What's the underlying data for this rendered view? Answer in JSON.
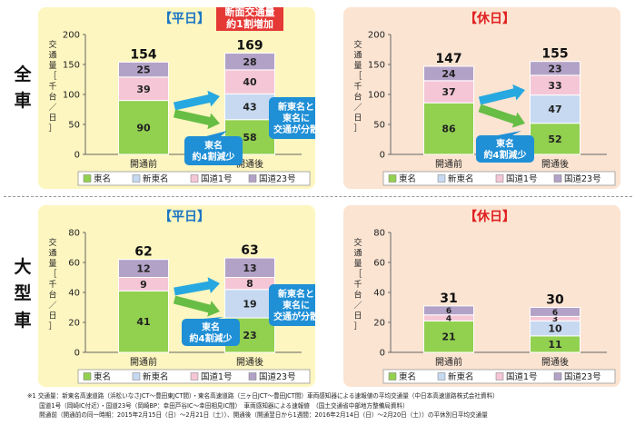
{
  "row_labels": {
    "all": [
      "全",
      "車"
    ],
    "large": [
      "大",
      "型",
      "車"
    ]
  },
  "ylabel_chars": [
    "交",
    "通",
    "量",
    "［",
    "千",
    "台",
    "／",
    "日",
    "］"
  ],
  "legend_labels": [
    "東名",
    "新東名",
    "国道1号",
    "国道23号"
  ],
  "colors": {
    "tomei": "#92d050",
    "shintomei": "#c6d9f1",
    "route1": "#f5c6d6",
    "route23": "#b3a2c7",
    "weekday_bg": "#fdf6c0",
    "holiday_bg": "#fbe4d2",
    "title_blue": "#1a75c4",
    "title_red": "#e02020",
    "arrow_blue": "#28a8e0",
    "arrow_green": "#68bd45",
    "callout_blue": "#1f8fd6"
  },
  "notes": [
    "※1 交通量：新東名高速道路（浜松いなさJCT～豊田東JCT間）・東名高速道路（三ヶ日JCT～豊田JCT間）車両感知器による速報値の平均交通量（中日本高速道路株式会社資料）",
    "　　国道1号（岡崎IC付近）・国道23号（岡崎BP：幸田芦谷IC～幸田相見IC間）　車両感知器による速報値　（国土交通省中部地方整備局資料）",
    "　　開通前（開通前の同一時期：2015年2月15日（日）～2月21日（土））、開通後（開通翌日から1週間：2016年2月14日（日）～2月20日（土））の平休別日平均交通量"
  ],
  "chart_data": [
    {
      "type": "bar",
      "stacked": true,
      "title": "【平日】",
      "vehicle": "全車",
      "ylabel": "交通量［千台／日］",
      "ylim": [
        0,
        200
      ],
      "yticks": [
        0,
        50,
        100,
        150,
        200
      ],
      "categories": [
        "開通前",
        "開通後"
      ],
      "series": [
        {
          "name": "東名",
          "values": [
            90,
            58
          ]
        },
        {
          "name": "新東名",
          "values": [
            0,
            43
          ]
        },
        {
          "name": "国道1号",
          "values": [
            39,
            40
          ]
        },
        {
          "name": "国道23号",
          "values": [
            25,
            28
          ]
        }
      ],
      "totals": [
        154,
        169
      ],
      "annotations": [
        "断面交通量\n約1割増加",
        "東名\n約4割減少",
        "新東名と\n東名に\n交通が分散"
      ]
    },
    {
      "type": "bar",
      "stacked": true,
      "title": "【休日】",
      "vehicle": "全車",
      "ylabel": "交通量［千台／日］",
      "ylim": [
        0,
        200
      ],
      "yticks": [
        0,
        50,
        100,
        150,
        200
      ],
      "categories": [
        "開通前",
        "開通後"
      ],
      "series": [
        {
          "name": "東名",
          "values": [
            86,
            52
          ]
        },
        {
          "name": "新東名",
          "values": [
            0,
            47
          ]
        },
        {
          "name": "国道1号",
          "values": [
            37,
            33
          ]
        },
        {
          "name": "国道23号",
          "values": [
            24,
            23
          ]
        }
      ],
      "totals": [
        147,
        155
      ],
      "annotations": [
        "東名\n約4割減少"
      ]
    },
    {
      "type": "bar",
      "stacked": true,
      "title": "【平日】",
      "vehicle": "大型車",
      "ylabel": "交通量［千台／日］",
      "ylim": [
        0,
        80
      ],
      "yticks": [
        0,
        20,
        40,
        60,
        80
      ],
      "categories": [
        "開通前",
        "開通後"
      ],
      "series": [
        {
          "name": "東名",
          "values": [
            41,
            23
          ]
        },
        {
          "name": "新東名",
          "values": [
            0,
            19
          ]
        },
        {
          "name": "国道1号",
          "values": [
            9,
            8
          ]
        },
        {
          "name": "国道23号",
          "values": [
            12,
            13
          ]
        }
      ],
      "totals": [
        62,
        63
      ],
      "annotations": [
        "東名\n約4割減少",
        "新東名と\n東名に\n交通が分散"
      ]
    },
    {
      "type": "bar",
      "stacked": true,
      "title": "【休日】",
      "vehicle": "大型車",
      "ylabel": "交通量［千台／日］",
      "ylim": [
        0,
        80
      ],
      "yticks": [
        0,
        20,
        40,
        60,
        80
      ],
      "categories": [
        "開通前",
        "開通後"
      ],
      "series": [
        {
          "name": "東名",
          "values": [
            21,
            11
          ]
        },
        {
          "name": "新東名",
          "values": [
            0,
            10
          ]
        },
        {
          "name": "国道1号",
          "values": [
            4,
            3
          ]
        },
        {
          "name": "国道23号",
          "values": [
            6,
            6
          ]
        }
      ],
      "totals": [
        31,
        30
      ],
      "annotations": []
    }
  ]
}
